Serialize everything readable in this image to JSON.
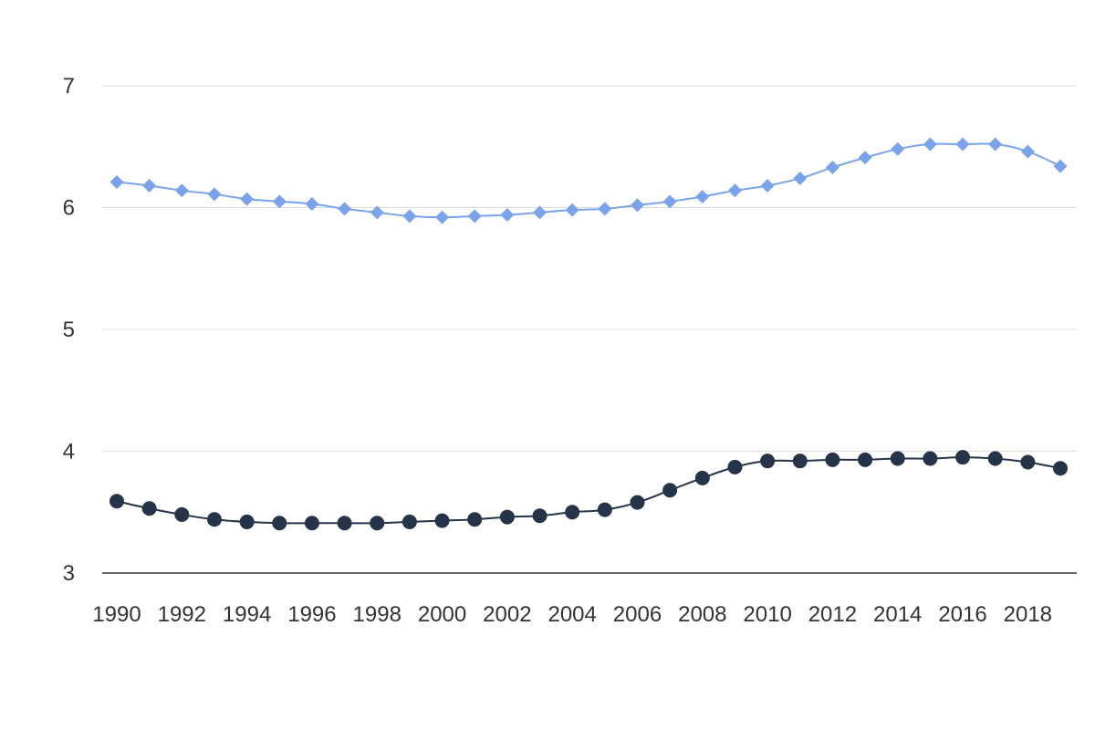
{
  "chart_data": {
    "type": "line",
    "title": "",
    "xlabel": "",
    "ylabel": "",
    "x": [
      1990,
      1991,
      1992,
      1993,
      1994,
      1995,
      1996,
      1997,
      1998,
      1999,
      2000,
      2001,
      2002,
      2003,
      2004,
      2005,
      2006,
      2007,
      2008,
      2009,
      2010,
      2011,
      2012,
      2013,
      2014,
      2015,
      2016,
      2017,
      2018,
      2019
    ],
    "x_tick_labels": [
      "1990",
      "1992",
      "1994",
      "1996",
      "1998",
      "2000",
      "2002",
      "2004",
      "2006",
      "2008",
      "2010",
      "2012",
      "2014",
      "2016",
      "2018"
    ],
    "y_tick_labels": [
      "3",
      "4",
      "5",
      "6",
      "7"
    ],
    "ylim": [
      3,
      7
    ],
    "xlim": [
      1990,
      2019
    ],
    "grid": "horizontal",
    "series": [
      {
        "color": "#7aa3ea",
        "marker": "diamond",
        "values": [
          6.21,
          6.18,
          6.14,
          6.11,
          6.07,
          6.05,
          6.03,
          5.99,
          5.96,
          5.93,
          5.92,
          5.93,
          5.94,
          5.96,
          5.98,
          5.99,
          6.02,
          6.05,
          6.09,
          6.14,
          6.18,
          6.24,
          6.33,
          6.41,
          6.48,
          6.52,
          6.52,
          6.52,
          6.46,
          6.34
        ]
      },
      {
        "color": "#253448",
        "marker": "circle",
        "values": [
          3.59,
          3.53,
          3.48,
          3.44,
          3.42,
          3.41,
          3.41,
          3.41,
          3.41,
          3.42,
          3.43,
          3.44,
          3.46,
          3.47,
          3.5,
          3.52,
          3.58,
          3.68,
          3.78,
          3.87,
          3.92,
          3.92,
          3.93,
          3.93,
          3.94,
          3.94,
          3.95,
          3.94,
          3.91,
          3.86
        ]
      }
    ]
  }
}
